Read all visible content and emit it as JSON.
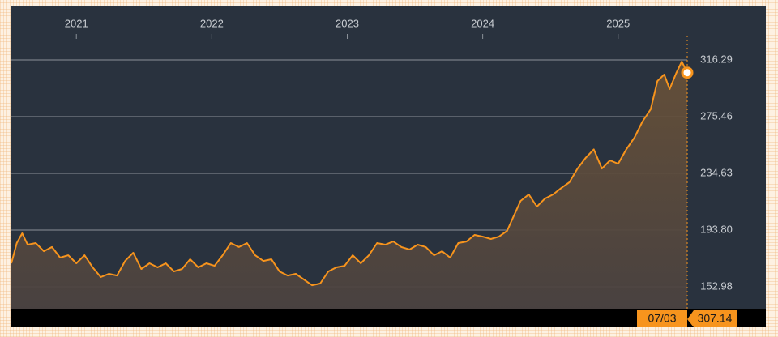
{
  "chart_data": {
    "type": "line",
    "x": [
      2020.52,
      2020.56,
      2020.6,
      2020.64,
      2020.7,
      2020.76,
      2020.82,
      2020.88,
      2020.94,
      2021.0,
      2021.06,
      2021.12,
      2021.18,
      2021.24,
      2021.3,
      2021.36,
      2021.42,
      2021.48,
      2021.54,
      2021.6,
      2021.66,
      2021.72,
      2021.78,
      2021.84,
      2021.9,
      2021.96,
      2022.02,
      2022.08,
      2022.14,
      2022.2,
      2022.26,
      2022.32,
      2022.38,
      2022.44,
      2022.5,
      2022.56,
      2022.62,
      2022.68,
      2022.74,
      2022.8,
      2022.86,
      2022.92,
      2022.98,
      2023.04,
      2023.1,
      2023.16,
      2023.22,
      2023.28,
      2023.34,
      2023.4,
      2023.46,
      2023.52,
      2023.58,
      2023.64,
      2023.7,
      2023.76,
      2023.82,
      2023.88,
      2023.94,
      2024.0,
      2024.06,
      2024.12,
      2024.18,
      2024.22,
      2024.28,
      2024.34,
      2024.4,
      2024.46,
      2024.52,
      2024.58,
      2024.64,
      2024.7,
      2024.76,
      2024.82,
      2024.88,
      2024.94,
      2025.0,
      2025.06,
      2025.12,
      2025.18,
      2025.24,
      2025.29,
      2025.34,
      2025.38,
      2025.43,
      2025.47,
      2025.51
    ],
    "values": [
      169.9,
      184.5,
      191.5,
      183.3,
      184.5,
      178.6,
      181.6,
      174,
      175.7,
      169.9,
      175.7,
      167,
      160,
      162.3,
      161.1,
      171.6,
      177.5,
      165.8,
      169.9,
      167,
      169.9,
      164,
      165.8,
      172.8,
      167,
      169.9,
      168.1,
      175.7,
      184.5,
      181.6,
      184.5,
      175.7,
      171.6,
      172.8,
      164,
      161.1,
      162.3,
      158.2,
      154.1,
      155.3,
      164,
      167,
      168.1,
      175.7,
      169.9,
      175.7,
      184.5,
      183.3,
      185.6,
      181.6,
      179.8,
      183.3,
      181.6,
      175.7,
      178.6,
      174,
      184.5,
      185.6,
      190.3,
      189.1,
      187.4,
      189.1,
      193.2,
      202,
      214.8,
      219.5,
      210.7,
      216.5,
      219.5,
      224.1,
      228.2,
      238.1,
      245.7,
      251.9,
      238.1,
      244,
      241.6,
      251.9,
      260.3,
      272,
      280.7,
      301.1,
      305.8,
      295.3,
      307,
      315.2,
      307.14
    ],
    "color": "#f7941d",
    "xlim": [
      2020.52,
      2025.51
    ],
    "xticks": [
      2021,
      2022,
      2023,
      2024,
      2025
    ],
    "ylim": [
      136.65,
      333.8
    ],
    "yticks": [
      152.98,
      {
        "value": 193.8,
        "label": "193.80"
      },
      234.63,
      275.46,
      316.29
    ],
    "grid": true,
    "last_date": "07/03"
  }
}
